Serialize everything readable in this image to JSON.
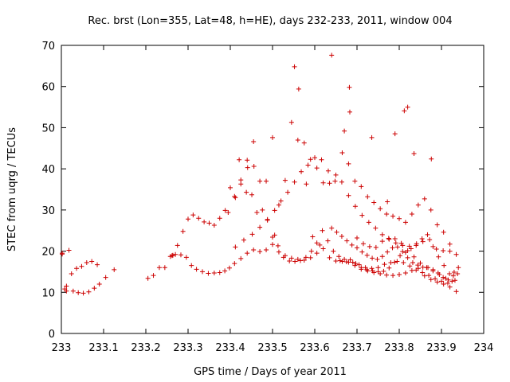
{
  "chart_data": {
    "type": "scatter",
    "title": "Rec. brst (Lon=355, Lat=48, h=HE), days 232-233, 2011, window 004",
    "xlabel": "GPS time / Days of year 2011",
    "ylabel": "STEC from uqrg / TECUs",
    "xlim": [
      233,
      234
    ],
    "ylim": [
      0,
      70
    ],
    "xticks": [
      233,
      233.1,
      233.2,
      233.3,
      233.4,
      233.5,
      233.6,
      233.7,
      233.8,
      233.9,
      234
    ],
    "xtick_labels": [
      "233",
      "233.1",
      "233.2",
      "233.3",
      "233.4",
      "233.5",
      "233.6",
      "233.7",
      "233.8",
      "233.9",
      "234"
    ],
    "yticks": [
      0,
      10,
      20,
      30,
      40,
      50,
      60,
      70
    ],
    "ytick_labels": [
      "0",
      "10",
      "20",
      "30",
      "40",
      "50",
      "60",
      "70"
    ],
    "marker": "+",
    "color": "#cc0000",
    "grid": false,
    "legend": "none",
    "x": [
      233.002,
      233.008,
      233.012,
      233.018,
      233.028,
      233.04,
      233.052,
      233.065,
      233.078,
      233.09,
      233.002,
      233.012,
      233.024,
      233.036,
      233.048,
      233.06,
      233.072,
      233.085,
      233.105,
      233.125,
      233.205,
      233.218,
      233.232,
      233.245,
      233.258,
      233.264,
      233.27,
      233.283,
      233.296,
      233.308,
      233.32,
      233.334,
      233.348,
      233.362,
      233.375,
      233.387,
      233.398,
      233.41,
      233.425,
      233.44,
      233.455,
      233.47,
      233.485,
      233.5,
      233.515,
      233.53,
      233.545,
      233.56,
      233.575,
      233.59,
      233.605,
      233.62,
      233.635,
      233.65,
      233.665,
      233.68,
      233.695,
      233.71,
      233.725,
      233.74,
      233.755,
      233.77,
      233.785,
      233.8,
      233.815,
      233.83,
      233.845,
      233.86,
      233.875,
      233.89,
      233.905,
      233.92,
      233.935,
      233.262,
      233.275,
      233.288,
      233.3,
      233.312,
      233.325,
      233.338,
      233.35,
      233.362,
      233.375,
      233.388,
      233.4,
      233.412,
      233.425,
      233.438,
      233.451,
      233.463,
      233.476,
      233.488,
      233.5,
      233.513,
      233.526,
      233.54,
      233.553,
      233.566,
      233.579,
      233.592,
      233.605,
      233.618,
      233.631,
      233.644,
      233.657,
      233.67,
      233.684,
      233.697,
      233.71,
      233.723,
      233.737,
      233.75,
      233.763,
      233.776,
      233.789,
      233.802,
      233.815,
      233.828,
      233.841,
      233.854,
      233.867,
      233.88,
      233.893,
      233.906,
      233.919,
      233.932,
      233.395,
      233.41,
      233.425,
      233.44,
      233.455,
      233.47,
      233.485,
      233.5,
      233.515,
      233.53,
      233.545,
      233.56,
      233.575,
      233.59,
      233.605,
      233.62,
      233.635,
      233.65,
      233.665,
      233.68,
      233.695,
      233.71,
      233.725,
      233.74,
      233.755,
      233.77,
      233.785,
      233.8,
      233.815,
      233.83,
      233.845,
      233.86,
      233.875,
      233.89,
      233.905,
      233.92,
      233.935,
      233.412,
      233.432,
      233.452,
      233.47,
      233.488,
      233.505,
      233.52,
      233.536,
      233.552,
      233.568,
      233.584,
      233.6,
      233.616,
      233.632,
      233.648,
      233.664,
      233.68,
      233.696,
      233.712,
      233.728,
      233.744,
      233.76,
      233.776,
      233.792,
      233.808,
      233.824,
      233.84,
      233.856,
      233.872,
      233.888,
      233.904,
      233.92,
      233.64,
      233.652,
      233.664,
      233.676,
      233.688,
      233.7,
      233.712,
      233.724,
      233.736,
      233.748,
      233.76,
      233.772,
      233.784,
      233.796,
      233.808,
      233.82,
      233.832,
      233.844,
      233.856,
      233.868,
      233.88,
      233.892,
      233.904,
      233.916,
      233.928,
      233.94,
      233.66,
      233.675,
      233.69,
      233.705,
      233.72,
      233.735,
      233.75,
      233.765,
      233.78,
      233.795,
      233.81,
      233.825,
      233.84,
      233.855,
      233.87,
      233.885,
      233.9,
      233.915,
      233.93,
      233.7,
      233.715,
      233.73,
      233.745,
      233.76,
      233.775,
      233.79,
      233.805,
      233.82,
      233.835,
      233.85,
      233.865,
      233.88,
      233.895,
      233.91,
      233.925,
      233.938,
      233.505,
      233.552,
      233.562,
      233.58,
      233.64,
      233.67,
      233.682,
      233.735,
      233.79,
      233.812,
      233.82,
      233.876,
      233.456,
      233.441,
      233.421,
      233.595,
      233.612,
      233.683,
      233.772,
      233.835
    ],
    "y": [
      19.5,
      10.8,
      11.5,
      20.2,
      10.3,
      9.9,
      9.8,
      10.1,
      11.0,
      12.0,
      19.3,
      10.3,
      14.5,
      15.8,
      16.3,
      17.2,
      17.5,
      16.7,
      13.6,
      15.5,
      13.4,
      14.1,
      16.0,
      16.0,
      18.7,
      19.0,
      19.2,
      19.1,
      18.5,
      16.5,
      15.6,
      15.0,
      14.6,
      14.7,
      14.8,
      15.2,
      15.9,
      17.0,
      18.2,
      19.5,
      20.3,
      19.9,
      20.3,
      21.6,
      19.8,
      18.9,
      18.3,
      18.0,
      17.8,
      18.4,
      19.5,
      20.6,
      18.4,
      17.6,
      17.5,
      17.3,
      16.5,
      15.6,
      15.2,
      14.8,
      14.5,
      14.2,
      14.1,
      14.3,
      14.7,
      15.3,
      15.8,
      14.0,
      13.1,
      12.5,
      12.0,
      11.3,
      10.2,
      18.9,
      21.4,
      24.8,
      27.8,
      28.8,
      28.0,
      27.1,
      26.8,
      26.3,
      28.0,
      29.9,
      35.4,
      33.0,
      36.3,
      34.3,
      33.7,
      29.4,
      30.0,
      27.5,
      23.4,
      21.3,
      18.5,
      17.6,
      17.5,
      17.7,
      18.5,
      20.0,
      22.0,
      25.0,
      22.5,
      20.0,
      18.7,
      18.0,
      17.9,
      17.0,
      16.0,
      15.5,
      15.2,
      15.0,
      15.1,
      15.9,
      17.3,
      18.9,
      19.7,
      20.6,
      21.8,
      23.0,
      24.0,
      21.1,
      18.6,
      16.5,
      14.5,
      12.9,
      29.4,
      33.3,
      37.3,
      42.1,
      46.6,
      37.0,
      37.0,
      47.6,
      31.2,
      37.2,
      51.3,
      47.0,
      46.3,
      42.3,
      40.2,
      36.6,
      36.5,
      38.5,
      43.9,
      41.2,
      37.0,
      35.7,
      33.2,
      31.8,
      30.3,
      29.0,
      28.5,
      27.9,
      27.0,
      29.0,
      31.2,
      32.7,
      30.0,
      26.4,
      24.6,
      21.7,
      19.2,
      21.0,
      22.7,
      24.1,
      25.8,
      27.7,
      29.9,
      32.2,
      34.3,
      36.8,
      39.3,
      40.9,
      42.7,
      42.2,
      39.5,
      37.0,
      36.8,
      33.5,
      30.9,
      28.7,
      27.0,
      25.6,
      24.0,
      22.9,
      22.0,
      21.4,
      21.2,
      21.4,
      22.3,
      22.8,
      20.5,
      20.1,
      20.0,
      25.6,
      24.6,
      23.6,
      22.5,
      21.5,
      20.8,
      19.8,
      19.0,
      18.3,
      18.0,
      18.7,
      19.8,
      20.8,
      21.0,
      19.9,
      18.4,
      17.2,
      16.6,
      16.1,
      16.0,
      15.5,
      14.7,
      13.6,
      13.0,
      14.0,
      16.0,
      17.7,
      17.4,
      17.3,
      16.7,
      16.0,
      15.8,
      16.0,
      16.8,
      17.2,
      17.5,
      17.2,
      16.4,
      15.4,
      14.8,
      14.1,
      13.3,
      12.7,
      12.2,
      14.9,
      23.2,
      21.8,
      21.1,
      20.9,
      22.4,
      23.1,
      23.0,
      21.9,
      20.1,
      18.6,
      17.1,
      16.0,
      15.2,
      14.3,
      13.4,
      12.7,
      14.5,
      23.9,
      64.8,
      59.4,
      36.3,
      67.6,
      49.2,
      59.8,
      47.6,
      48.5,
      54.1,
      55.0,
      42.4,
      40.6,
      40.3,
      42.2,
      23.5,
      21.5,
      53.8,
      32.0,
      43.7
    ]
  }
}
